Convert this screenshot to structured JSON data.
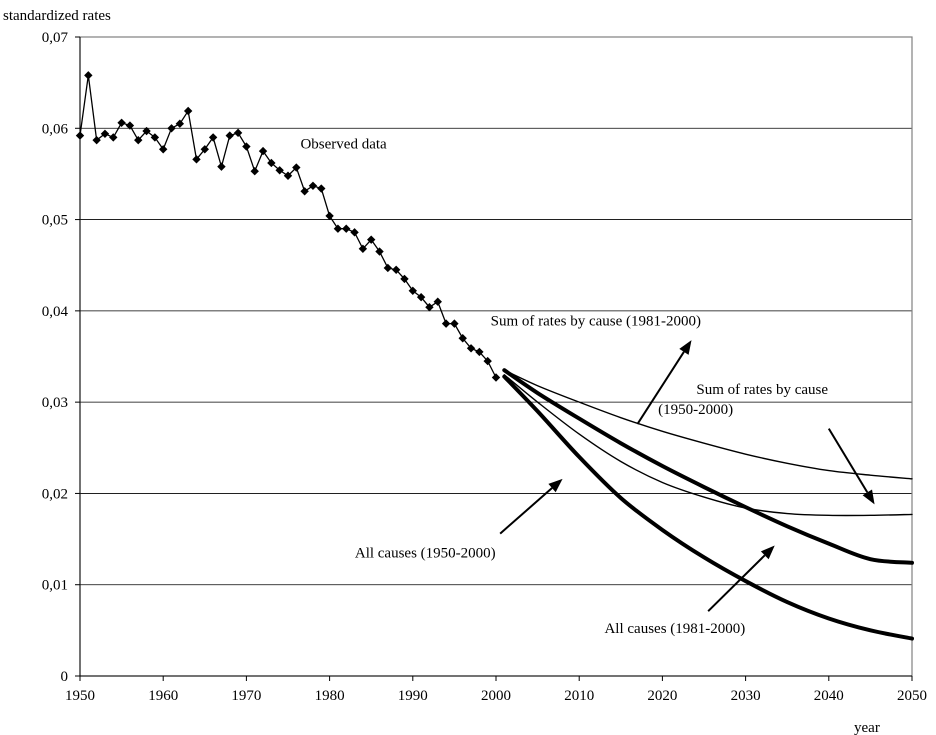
{
  "chart_data": {
    "type": "line",
    "title": "",
    "ylabel": "standardized rates",
    "xlabel": "year",
    "xlim": [
      1950,
      2050
    ],
    "ylim": [
      0,
      0.07
    ],
    "x_ticks": [
      1950,
      1960,
      1970,
      1980,
      1990,
      2000,
      2010,
      2020,
      2030,
      2040,
      2050
    ],
    "x_tick_labels": [
      "1950",
      "1960",
      "1970",
      "1980",
      "1990",
      "2000",
      "2010",
      "2020",
      "2030",
      "2040",
      "2050"
    ],
    "y_ticks": [
      0,
      0.01,
      0.02,
      0.03,
      0.04,
      0.05,
      0.06,
      0.07
    ],
    "y_tick_labels": [
      "0",
      "0,01",
      "0,02",
      "0,03",
      "0,04",
      "0,05",
      "0,06",
      "0,07"
    ],
    "grid": "horizontal",
    "series": [
      {
        "name": "Observed data",
        "style": "thin-with-diamond-markers",
        "x": [
          1950,
          1951,
          1952,
          1953,
          1954,
          1955,
          1956,
          1957,
          1958,
          1959,
          1960,
          1961,
          1962,
          1963,
          1964,
          1965,
          1966,
          1967,
          1968,
          1969,
          1970,
          1971,
          1972,
          1973,
          1974,
          1975,
          1976,
          1977,
          1978,
          1979,
          1980,
          1981,
          1982,
          1983,
          1984,
          1985,
          1986,
          1987,
          1988,
          1989,
          1990,
          1991,
          1992,
          1993,
          1994,
          1995,
          1996,
          1997,
          1998,
          1999,
          2000
        ],
        "y": [
          0.0592,
          0.0658,
          0.0587,
          0.0594,
          0.059,
          0.0606,
          0.0603,
          0.0587,
          0.0597,
          0.059,
          0.0577,
          0.06,
          0.0605,
          0.0619,
          0.0566,
          0.0577,
          0.059,
          0.0558,
          0.0592,
          0.0595,
          0.058,
          0.0553,
          0.0575,
          0.0562,
          0.0554,
          0.0548,
          0.0557,
          0.0531,
          0.0537,
          0.0534,
          0.0504,
          0.049,
          0.049,
          0.0486,
          0.0468,
          0.0478,
          0.0465,
          0.0447,
          0.0445,
          0.0435,
          0.0422,
          0.0415,
          0.0404,
          0.041,
          0.0386,
          0.0386,
          0.037,
          0.0359,
          0.0355,
          0.0345,
          0.0327
        ]
      },
      {
        "name": "Sum of rates by cause (1981-2000)",
        "style": "thin",
        "x": [
          2001,
          2005,
          2010,
          2015,
          2020,
          2025,
          2030,
          2035,
          2040,
          2045,
          2050
        ],
        "y": [
          0.0335,
          0.0318,
          0.03,
          0.0283,
          0.0268,
          0.0255,
          0.0243,
          0.0233,
          0.0225,
          0.022,
          0.0216
        ]
      },
      {
        "name": "Sum of rates by cause (1950-2000)",
        "style": "thin",
        "x": [
          2001,
          2005,
          2010,
          2015,
          2020,
          2025,
          2030,
          2035,
          2040,
          2045,
          2050
        ],
        "y": [
          0.033,
          0.03,
          0.0265,
          0.0235,
          0.0212,
          0.0196,
          0.0184,
          0.0178,
          0.0176,
          0.0176,
          0.0177
        ]
      },
      {
        "name": "All causes (1950-2000)",
        "style": "thick",
        "x": [
          2001,
          2005,
          2010,
          2015,
          2020,
          2025,
          2030,
          2035,
          2040,
          2045,
          2050
        ],
        "y": [
          0.0335,
          0.031,
          0.0282,
          0.0255,
          0.023,
          0.0207,
          0.0185,
          0.0164,
          0.0145,
          0.0128,
          0.0124
        ]
      },
      {
        "name": "All causes (1981-2000)",
        "style": "thick",
        "x": [
          2001,
          2005,
          2010,
          2015,
          2020,
          2025,
          2030,
          2035,
          2040,
          2045,
          2050
        ],
        "y": [
          0.0328,
          0.029,
          0.024,
          0.0195,
          0.016,
          0.013,
          0.0104,
          0.0081,
          0.0063,
          0.005,
          0.0041
        ]
      }
    ],
    "annotations": [
      {
        "text": "Observed data",
        "x": 1976.5,
        "y": 0.0578,
        "anchor": "start"
      },
      {
        "text": "Sum of rates by cause (1981-2000)",
        "x": 2012,
        "y": 0.0384,
        "anchor": "middle"
      },
      {
        "text": "Sum of rates by cause",
        "x": 2032,
        "y": 0.0309,
        "anchor": "middle"
      },
      {
        "text": "(1950-2000)",
        "x": 2024,
        "y": 0.0287,
        "anchor": "middle"
      },
      {
        "text": "All causes (1950-2000)",
        "x": 1991.5,
        "y": 0.013,
        "anchor": "middle"
      },
      {
        "text": "All causes (1981-2000)",
        "x": 2021.5,
        "y": 0.0047,
        "anchor": "middle"
      }
    ],
    "arrows": [
      {
        "from": [
          2017,
          0.0276
        ],
        "to": [
          2023.5,
          0.0368
        ]
      },
      {
        "from": [
          2040,
          0.0271
        ],
        "to": [
          2045.5,
          0.0188
        ]
      },
      {
        "from": [
          2000.5,
          0.0156
        ],
        "to": [
          2008,
          0.0216
        ]
      },
      {
        "from": [
          2025.5,
          0.0071
        ],
        "to": [
          2033.5,
          0.0143
        ]
      }
    ]
  }
}
